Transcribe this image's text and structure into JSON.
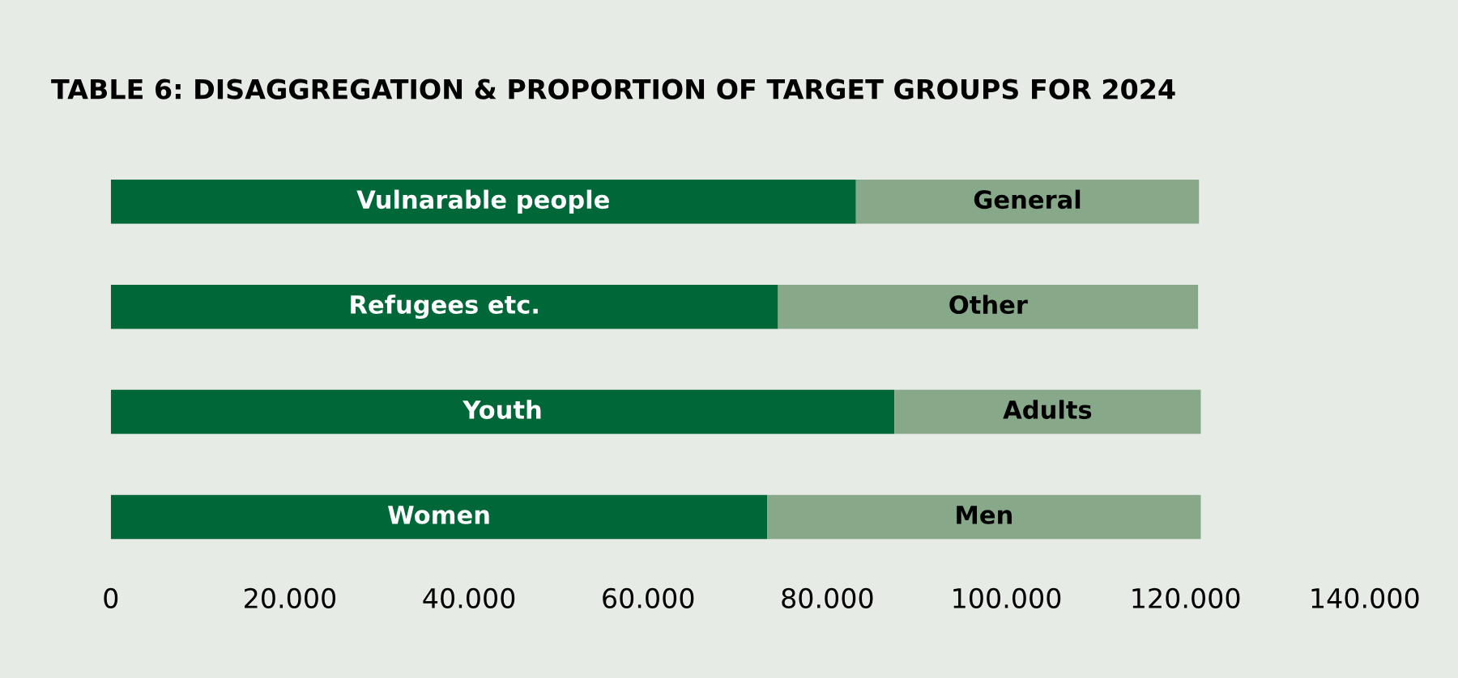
{
  "chart_data": {
    "type": "bar",
    "orientation": "horizontal",
    "stacked": true,
    "title": "TABLE 6: DISAGGREGATION & PROPORTION OF TARGET GROUPS FOR 2024",
    "categories": [
      null,
      null,
      null,
      null
    ],
    "series": [
      {
        "color": "#006838",
        "values": [
          83200,
          74500,
          87500,
          73300
        ],
        "value_labels": [
          "Vulnarable people",
          "Refugees etc.",
          "Youth",
          "Women"
        ]
      },
      {
        "color": "#87a98a",
        "values": [
          38300,
          46900,
          34200,
          48400
        ],
        "value_labels": [
          "General",
          "Other",
          "Adults",
          "Men"
        ]
      }
    ],
    "xlim": [
      0,
      140000
    ],
    "xticks": [
      0,
      {
        "value": 20000,
        "label": "20.000"
      },
      {
        "value": 40000,
        "label": "40.000"
      },
      {
        "value": 60000,
        "label": "60.000"
      },
      {
        "value": 80000,
        "label": "80.000"
      },
      {
        "value": 100000,
        "label": "100.000"
      },
      {
        "value": 120000,
        "label": "120.000"
      },
      {
        "value": 140000,
        "label": "140.000"
      }
    ],
    "tick_labels": "x",
    "grid": false,
    "legend": false
  }
}
